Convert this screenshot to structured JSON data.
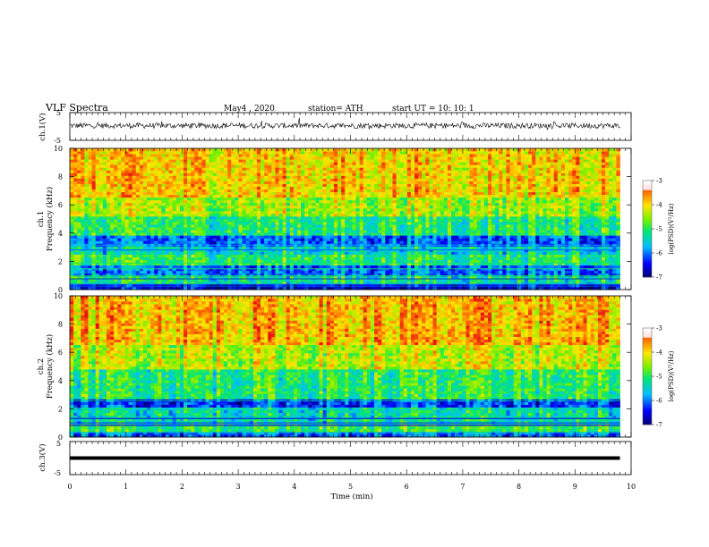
{
  "header": {
    "title": "VLF  Spectra",
    "date": "May4  , 2020",
    "station": "station= ATH",
    "start": "start  UT  =    10: 10: 1"
  },
  "chart_data": [
    {
      "type": "line",
      "panel": "ch1-waveform",
      "ylabel": "ch.1(V)",
      "y_ticks": [
        "5",
        "-5"
      ],
      "ylim": [
        -5,
        5
      ],
      "xlim": [
        0,
        10
      ],
      "description_values": "noisy waveform centred slightly above 0 V, amplitude about ±1 V with spikes to about 2 V",
      "y_mean": 0.3,
      "y_amplitude": 1.0
    },
    {
      "type": "heatmap",
      "panel": "ch1-spectrogram",
      "ylabel_top": "ch.1",
      "ylabel": "Frequency  (kHz)",
      "y_ticks": [
        "0",
        "2",
        "4",
        "6",
        "8",
        "10"
      ],
      "ylim": [
        0,
        10
      ],
      "xlim": [
        0,
        9.8
      ],
      "colorbar": {
        "label": "log(PSD)(V²/Hz)",
        "ticks": [
          "-3",
          "-4",
          "-5",
          "-6",
          "-7"
        ],
        "range": [
          -7,
          -3
        ]
      },
      "bands": [
        {
          "f_from": 0.0,
          "f_to": 0.4,
          "level": -6.5
        },
        {
          "f_from": 0.4,
          "f_to": 1.0,
          "level": -5.2
        },
        {
          "f_from": 1.0,
          "f_to": 1.7,
          "level": -6.0
        },
        {
          "f_from": 1.7,
          "f_to": 2.5,
          "level": -5.0
        },
        {
          "f_from": 2.5,
          "f_to": 3.0,
          "level": -5.4
        },
        {
          "f_from": 3.0,
          "f_to": 3.8,
          "level": -6.0
        },
        {
          "f_from": 3.8,
          "f_to": 5.2,
          "level": -5.0
        },
        {
          "f_from": 5.2,
          "f_to": 6.5,
          "level": -4.4
        },
        {
          "f_from": 6.5,
          "f_to": 10.0,
          "level": -3.9
        }
      ]
    },
    {
      "type": "heatmap",
      "panel": "ch2-spectrogram",
      "ylabel_top": "ch.2",
      "ylabel": "Frequency  (kHz)",
      "y_ticks": [
        "0",
        "2",
        "4",
        "6",
        "8",
        "10"
      ],
      "ylim": [
        0,
        10
      ],
      "xlim": [
        0,
        9.8
      ],
      "colorbar": {
        "label": "log(PSD)(V²/Hz)",
        "ticks": [
          "-3",
          "-4",
          "-5",
          "-6",
          "-7"
        ],
        "range": [
          -7,
          -3
        ]
      },
      "bands": [
        {
          "f_from": 0.0,
          "f_to": 0.3,
          "level": -6.0
        },
        {
          "f_from": 0.3,
          "f_to": 1.0,
          "level": -4.9
        },
        {
          "f_from": 1.0,
          "f_to": 2.1,
          "level": -5.3
        },
        {
          "f_from": 2.1,
          "f_to": 2.7,
          "level": -6.2
        },
        {
          "f_from": 2.7,
          "f_to": 4.8,
          "level": -5.0
        },
        {
          "f_from": 4.8,
          "f_to": 6.5,
          "level": -4.3
        },
        {
          "f_from": 6.5,
          "f_to": 10.0,
          "level": -3.8
        }
      ]
    },
    {
      "type": "line",
      "panel": "ch3-waveform",
      "ylabel": "ch.3(V)",
      "y_ticks": [
        "5",
        "-5"
      ],
      "ylim": [
        -5,
        5
      ],
      "xlim": [
        0,
        10
      ],
      "y_mean": 0.0,
      "y_amplitude": 0.25,
      "xlabel": "Time  (min)",
      "x_ticks": [
        "0",
        "1",
        "2",
        "3",
        "4",
        "5",
        "6",
        "7",
        "8",
        "9",
        "10"
      ]
    }
  ]
}
